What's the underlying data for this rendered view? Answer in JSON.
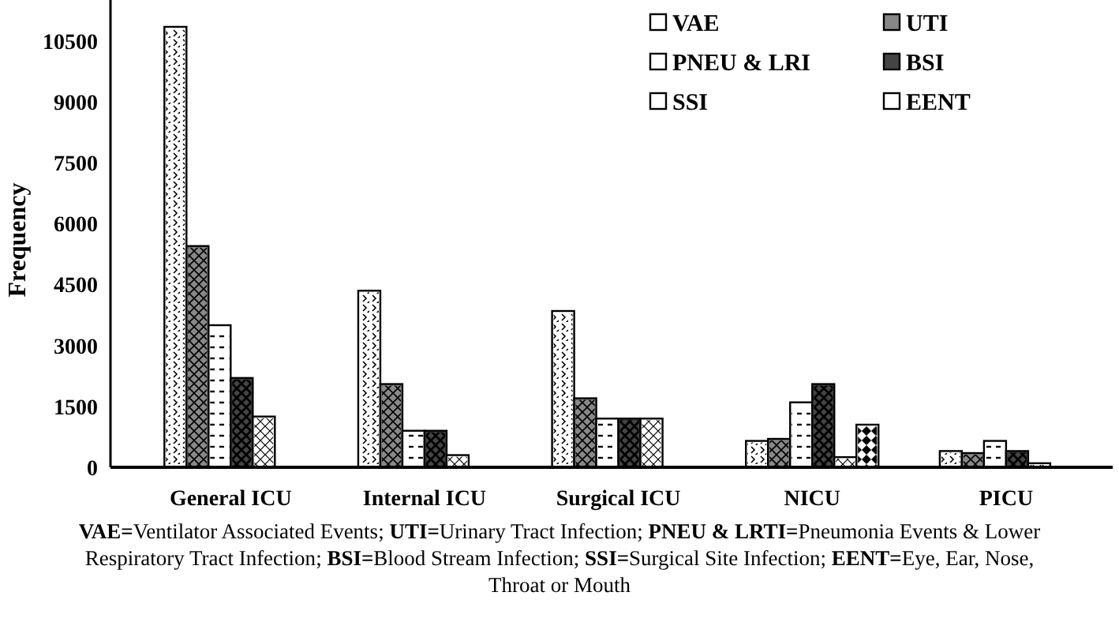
{
  "chart_data": {
    "type": "bar",
    "ylabel": "Frequency",
    "categories": [
      "General ICU",
      "Internal ICU",
      "Surgical ICU",
      "NICU",
      "PICU"
    ],
    "series": [
      {
        "name": "VAE",
        "color": "#ffffff",
        "values": [
          10850,
          4350,
          3850,
          650,
          400
        ]
      },
      {
        "name": "UTI",
        "color": "#888888",
        "values": [
          5450,
          2050,
          1700,
          700,
          350
        ]
      },
      {
        "name": "PNEU & LRI",
        "color": "#ffffff",
        "values": [
          3500,
          900,
          1200,
          1600,
          650
        ]
      },
      {
        "name": "BSI",
        "color": "#444444",
        "values": [
          2200,
          900,
          1200,
          2050,
          400
        ]
      },
      {
        "name": "SSI",
        "color": "#ffffff",
        "values": [
          1250,
          300,
          1200,
          250,
          100
        ]
      },
      {
        "name": "EENT",
        "color": "#ffffff",
        "values": [
          null,
          null,
          null,
          1050,
          null
        ]
      }
    ],
    "ylim": [
      0,
      11200
    ],
    "yticks": [
      0,
      1500,
      3000,
      4500,
      6000,
      7500,
      9000,
      10500
    ],
    "grid": false,
    "legend": "top right",
    "annotations": [
      "VAE=Ventilator Associated Events; UTI=Urinary Tract Infection; PNEU & LRTI=Pneumonia Events & Lower Respiratory Tract Infection; BSI=Blood Stream Infection; SSI=Surgical Site Infection; EENT=Eye, Ear, Nose, Throat or Mouth"
    ]
  }
}
